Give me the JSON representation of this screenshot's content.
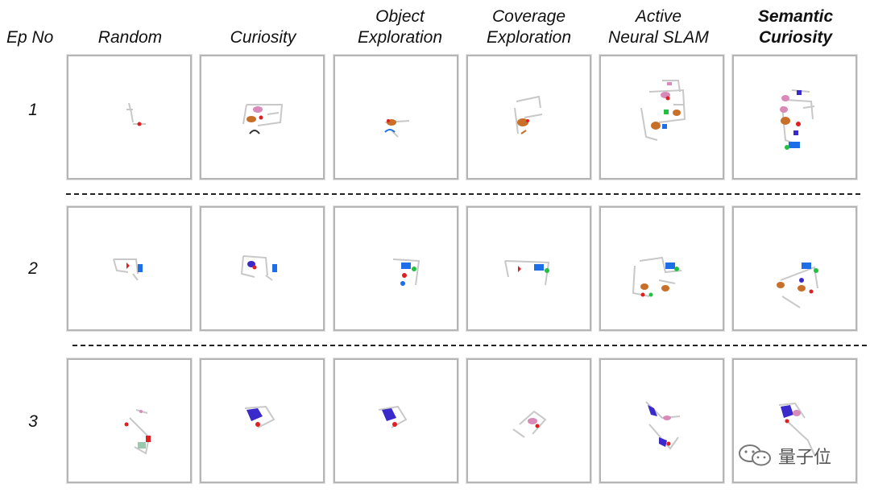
{
  "header": {
    "ep_no": "Ep No",
    "methods": [
      {
        "l1": "",
        "l2": "Random",
        "bold": false
      },
      {
        "l1": "",
        "l2": "Curiosity",
        "bold": false
      },
      {
        "l1": "Object",
        "l2": "Exploration",
        "bold": false
      },
      {
        "l1": "Coverage",
        "l2": "Exploration",
        "bold": false
      },
      {
        "l1": "Active",
        "l2": "Neural SLAM",
        "bold": false
      },
      {
        "l1": "Semantic",
        "l2": "Curiosity",
        "bold": true
      }
    ]
  },
  "episodes": [
    "1",
    "2",
    "3"
  ],
  "watermark": {
    "text": "量子位",
    "icon": "wechat-icon"
  },
  "colors": {
    "panel_border": "#b5b5b5",
    "wall": "#c8c8c8",
    "agent": "#e02020",
    "blue": "#1e6ee8",
    "pink": "#d98ab8",
    "orange": "#c8702a",
    "green": "#22c040",
    "violet": "#3a2acc",
    "teal": "#9ac8b0"
  }
}
